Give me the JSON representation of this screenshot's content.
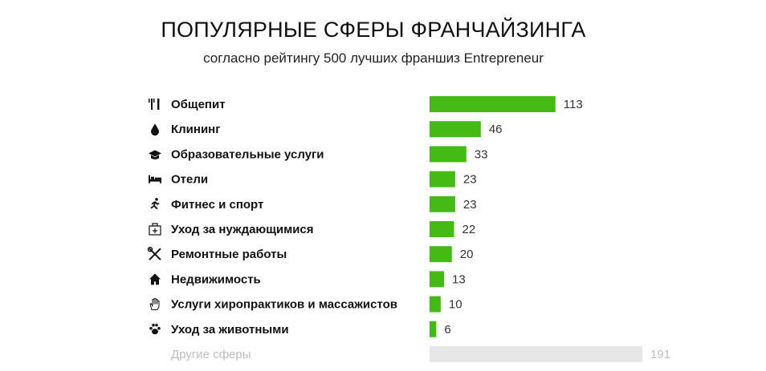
{
  "header": {
    "title": "ПОПУЛЯРНЫЕ СФЕРЫ ФРАНЧАЙЗИНГА",
    "subtitle": "согласно рейтингу 500 лучших франшиз Entrepreneur"
  },
  "colors": {
    "bar": "#44bb14",
    "other_bar": "#e6e6e6",
    "other_text": "#bdbdbd"
  },
  "chart_data": {
    "type": "bar",
    "orientation": "horizontal",
    "title": "ПОПУЛЯРНЫЕ СФЕРЫ ФРАНЧАЙЗИНГА",
    "subtitle": "согласно рейтингу 500 лучших франшиз Entrepreneur",
    "categories": [
      "Общепит",
      "Клининг",
      "Образовательные услуги",
      "Отели",
      "Фитнес и спорт",
      "Уход за нуждающимися",
      "Ремонтные работы",
      "Недвижимость",
      "Услуги хиропрактиков и массажистов",
      "Уход за животными",
      "Другие сферы"
    ],
    "values": [
      113,
      46,
      33,
      23,
      23,
      22,
      20,
      13,
      10,
      6,
      191
    ],
    "icons": [
      "fork-knife-icon",
      "droplet-icon",
      "graduation-cap-icon",
      "bed-icon",
      "running-person-icon",
      "first-aid-kit-icon",
      "wrench-screwdriver-icon",
      "house-icon",
      "hand-icon",
      "paw-icon",
      ""
    ],
    "highlight": [
      true,
      true,
      true,
      true,
      true,
      true,
      true,
      true,
      true,
      true,
      false
    ],
    "xlim": [
      0,
      191
    ],
    "grid": false,
    "legend": "none"
  }
}
